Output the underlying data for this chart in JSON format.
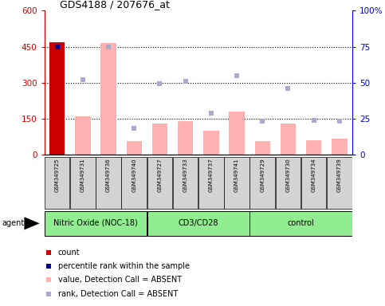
{
  "title": "GDS4188 / 207676_at",
  "samples": [
    "GSM349725",
    "GSM349731",
    "GSM349736",
    "GSM349740",
    "GSM349727",
    "GSM349733",
    "GSM349737",
    "GSM349741",
    "GSM349729",
    "GSM349730",
    "GSM349734",
    "GSM349739"
  ],
  "bar_colors_present": "#cc0000",
  "bar_colors_absent": "#ffb0b0",
  "dot_colors_present": "#00008b",
  "dot_colors_absent": "#aaaacc",
  "ylim_left": [
    0,
    600
  ],
  "ylim_right": [
    0,
    100
  ],
  "yticks_left": [
    0,
    150,
    300,
    450,
    600
  ],
  "ytick_labels_left": [
    "0",
    "150",
    "300",
    "450",
    "600"
  ],
  "yticks_right": [
    0,
    25,
    50,
    75,
    100
  ],
  "ytick_labels_right": [
    "0",
    "25",
    "50",
    "75",
    "100%"
  ],
  "bar_values": [
    470,
    160,
    465,
    55,
    130,
    140,
    100,
    180,
    55,
    130,
    60,
    65
  ],
  "bar_present": [
    true,
    false,
    false,
    false,
    false,
    false,
    false,
    false,
    false,
    false,
    false,
    false
  ],
  "dot_values_rank": [
    75,
    52,
    75,
    18,
    49,
    51,
    29,
    55,
    23,
    46,
    24,
    23
  ],
  "dot_present": [
    true,
    false,
    false,
    false,
    false,
    false,
    false,
    false,
    false,
    false,
    false,
    false
  ],
  "group_spans": [
    {
      "label": "Nitric Oxide (NOC-18)",
      "start": 0,
      "end": 4
    },
    {
      "label": "CD3/CD28",
      "start": 4,
      "end": 8
    },
    {
      "label": "control",
      "start": 8,
      "end": 12
    }
  ],
  "group_bg_color": "#90ee90",
  "sample_bg_color": "#d3d3d3",
  "left_axis_color": "#cc0000",
  "right_axis_color": "#0000cc",
  "legend_items": [
    {
      "color": "#cc0000",
      "label": "count"
    },
    {
      "color": "#00008b",
      "label": "percentile rank within the sample"
    },
    {
      "color": "#ffb0b0",
      "label": "value, Detection Call = ABSENT"
    },
    {
      "color": "#aaaacc",
      "label": "rank, Detection Call = ABSENT"
    }
  ],
  "agent_label": "agent",
  "fig_width": 4.83,
  "fig_height": 3.84,
  "dpi": 100
}
